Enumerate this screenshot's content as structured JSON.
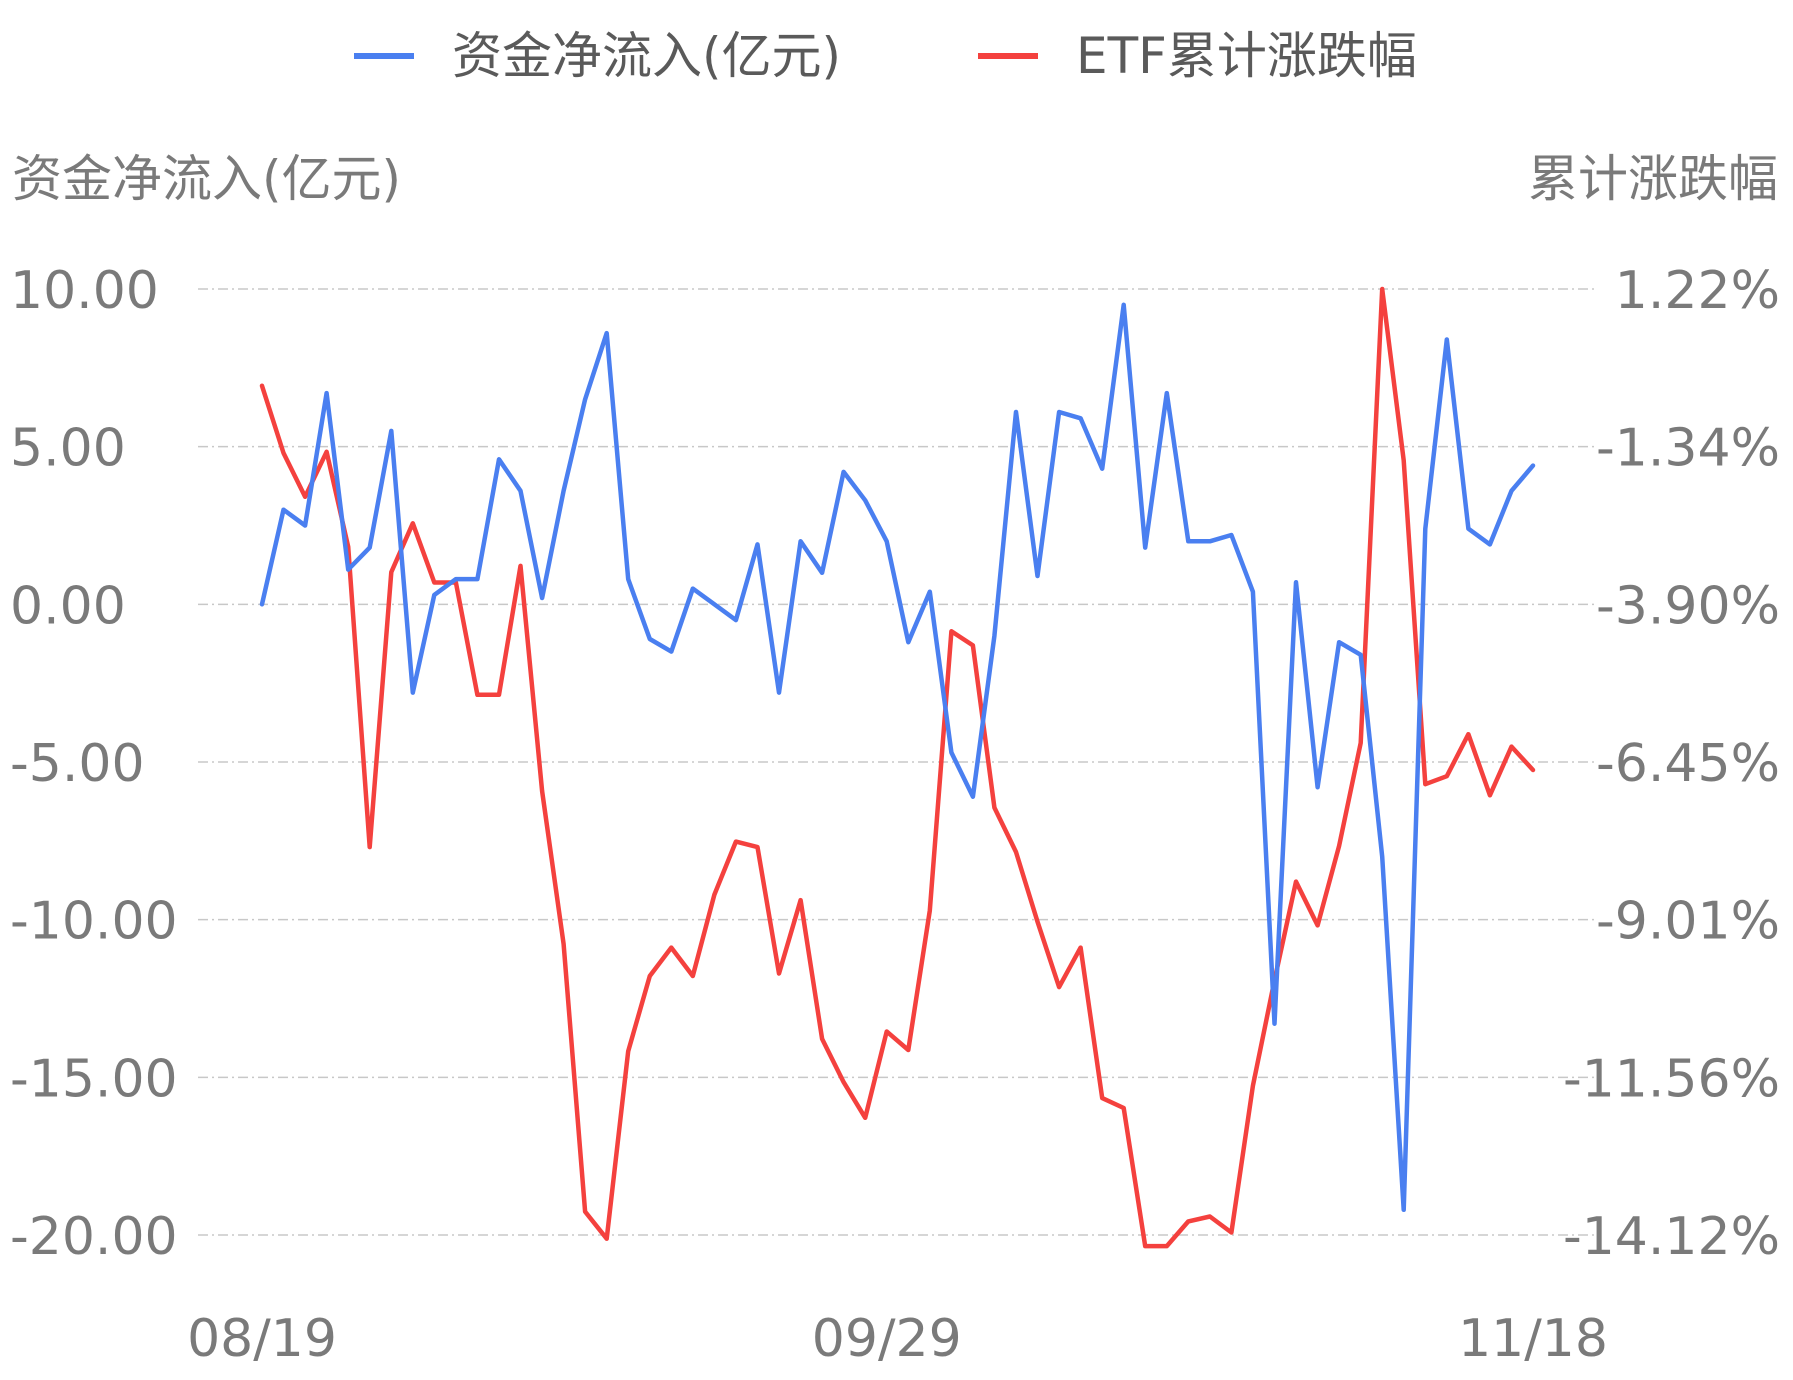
{
  "chart_data": {
    "type": "line",
    "xlabel": "",
    "y_left_label": "资金净流入(亿元)",
    "y_right_label": "累计涨跌幅",
    "x_tick_labels": [
      "08/19",
      "09/29",
      "11/18"
    ],
    "y_left_ticks": [
      "10.00",
      "5.00",
      "0.00",
      "-5.00",
      "-10.00",
      "-15.00",
      "-20.00"
    ],
    "y_right_ticks": [
      "1.22%",
      "-1.34%",
      "-3.90%",
      "-6.45%",
      "-9.01%",
      "-11.56%",
      "-14.12%"
    ],
    "y_left_range": [
      -20,
      10
    ],
    "y_right_range": [
      -14.12,
      1.22
    ],
    "legend_position": "top-center",
    "grid": true,
    "series": [
      {
        "name": "资金净流入(亿元)",
        "axis": "left",
        "color": "#4a7ff0",
        "values": [
          0.0,
          3.0,
          2.5,
          6.7,
          1.1,
          1.8,
          5.5,
          -2.8,
          0.3,
          0.8,
          0.8,
          4.6,
          3.6,
          0.2,
          3.6,
          6.5,
          8.6,
          0.8,
          -1.1,
          -1.5,
          0.5,
          0.0,
          -0.5,
          1.9,
          -2.8,
          2.0,
          1.0,
          4.2,
          3.3,
          2.0,
          -1.2,
          0.4,
          -4.7,
          -6.1,
          -1.0,
          6.1,
          0.9,
          6.1,
          5.9,
          4.3,
          9.5,
          1.8,
          6.7,
          2.0,
          2.0,
          2.2,
          0.4,
          -13.3,
          0.7,
          -5.8,
          -1.2,
          -1.6,
          -8.0,
          -19.2,
          2.4,
          8.4,
          2.4,
          1.9,
          3.6,
          4.4
        ]
      },
      {
        "name": "ETF累计涨跌幅",
        "axis": "right",
        "color": "#f4413e",
        "values": [
          -0.35,
          -1.44,
          -2.15,
          -1.42,
          -2.96,
          -7.83,
          -3.37,
          -2.58,
          -3.54,
          -3.54,
          -5.36,
          -5.36,
          -3.27,
          -6.92,
          -9.4,
          -13.74,
          -14.18,
          -11.14,
          -9.92,
          -9.46,
          -9.92,
          -8.6,
          -7.74,
          -7.83,
          -9.88,
          -8.69,
          -10.94,
          -11.64,
          -12.22,
          -10.82,
          -11.12,
          -8.86,
          -4.33,
          -4.56,
          -7.19,
          -7.91,
          -9.04,
          -10.1,
          -9.46,
          -11.9,
          -12.06,
          -14.3,
          -14.3,
          -13.9,
          -13.82,
          -14.08,
          -11.7,
          -9.99,
          -8.39,
          -9.1,
          -7.81,
          -6.14,
          1.22,
          -1.56,
          -6.81,
          -6.68,
          -6.0,
          -6.99,
          -6.2,
          -6.58
        ]
      }
    ]
  }
}
